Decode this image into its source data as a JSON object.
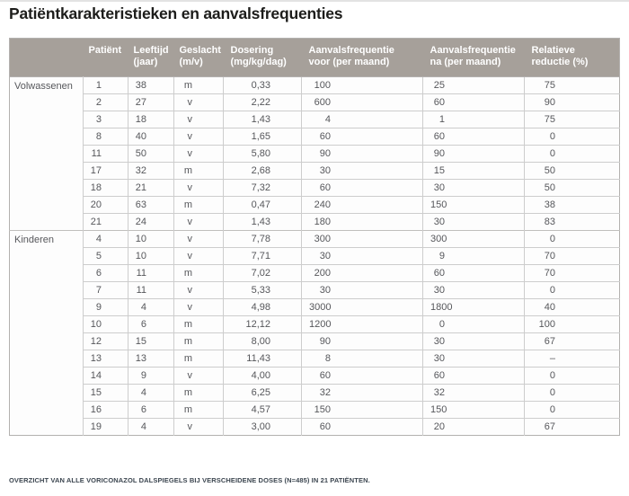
{
  "title": "Patiëntkarakteristieken en aanvalsfrequenties",
  "footnote": "OVERZICHT VAN ALLE VORICONAZOL DALSPIEGELS BIJ VERSCHEIDENE DOSES (N=485) IN 21 PATIËNTEN.",
  "colors": {
    "header_bg": "#a6a09a",
    "header_text": "#ffffff",
    "title_text": "#1d1d1b",
    "cell_text": "#56575b",
    "row_border": "#cdcdcd",
    "footnote_text": "#3c4650"
  },
  "table": {
    "columns": [
      {
        "lines": [
          "Patiënt"
        ]
      },
      {
        "lines": [
          "Leeftijd",
          "(jaar)"
        ]
      },
      {
        "lines": [
          "Geslacht",
          "(m/v)"
        ]
      },
      {
        "lines": [
          "Dosering",
          "(mg/kg/dag)"
        ]
      },
      {
        "lines": [
          "Aanvalsfrequentie",
          "voor (per maand)"
        ]
      },
      {
        "lines": [
          "Aanvalsfrequentie",
          "na (per maand)"
        ]
      },
      {
        "lines": [
          "Relatieve",
          "reductie (%)"
        ]
      }
    ],
    "groups": [
      {
        "label": "Volwassenen",
        "rows": [
          [
            "1",
            "38",
            "m",
            "0,33",
            "100",
            "25",
            "75"
          ],
          [
            "2",
            "27",
            "v",
            "2,22",
            "600",
            "60",
            "90"
          ],
          [
            "3",
            "18",
            "v",
            "1,43",
            "4",
            "1",
            "75"
          ],
          [
            "8",
            "40",
            "v",
            "1,65",
            "60",
            "60",
            "0"
          ],
          [
            "11",
            "50",
            "v",
            "5,80",
            "90",
            "90",
            "0"
          ],
          [
            "17",
            "32",
            "m",
            "2,68",
            "30",
            "15",
            "50"
          ],
          [
            "18",
            "21",
            "v",
            "7,32",
            "60",
            "30",
            "50"
          ],
          [
            "20",
            "63",
            "m",
            "0,47",
            "240",
            "150",
            "38"
          ],
          [
            "21",
            "24",
            "v",
            "1,43",
            "180",
            "30",
            "83"
          ]
        ]
      },
      {
        "label": "Kinderen",
        "rows": [
          [
            "4",
            "10",
            "v",
            "7,78",
            "300",
            "300",
            "0"
          ],
          [
            "5",
            "10",
            "v",
            "7,71",
            "30",
            "9",
            "70"
          ],
          [
            "6",
            "11",
            "m",
            "7,02",
            "200",
            "60",
            "70"
          ],
          [
            "7",
            "11",
            "v",
            "5,33",
            "30",
            "30",
            "0"
          ],
          [
            "9",
            "4",
            "v",
            "4,98",
            "3000",
            "1800",
            "40"
          ],
          [
            "10",
            "6",
            "m",
            "12,12",
            "1200",
            "0",
            "100"
          ],
          [
            "12",
            "15",
            "m",
            "8,00",
            "90",
            "30",
            "67"
          ],
          [
            "13",
            "13",
            "m",
            "11,43",
            "8",
            "30",
            "–"
          ],
          [
            "14",
            "9",
            "v",
            "4,00",
            "60",
            "60",
            "0"
          ],
          [
            "15",
            "4",
            "m",
            "6,25",
            "32",
            "32",
            "0"
          ],
          [
            "16",
            "6",
            "m",
            "4,57",
            "150",
            "150",
            "0"
          ],
          [
            "19",
            "4",
            "v",
            "3,00",
            "60",
            "20",
            "67"
          ]
        ]
      }
    ]
  }
}
